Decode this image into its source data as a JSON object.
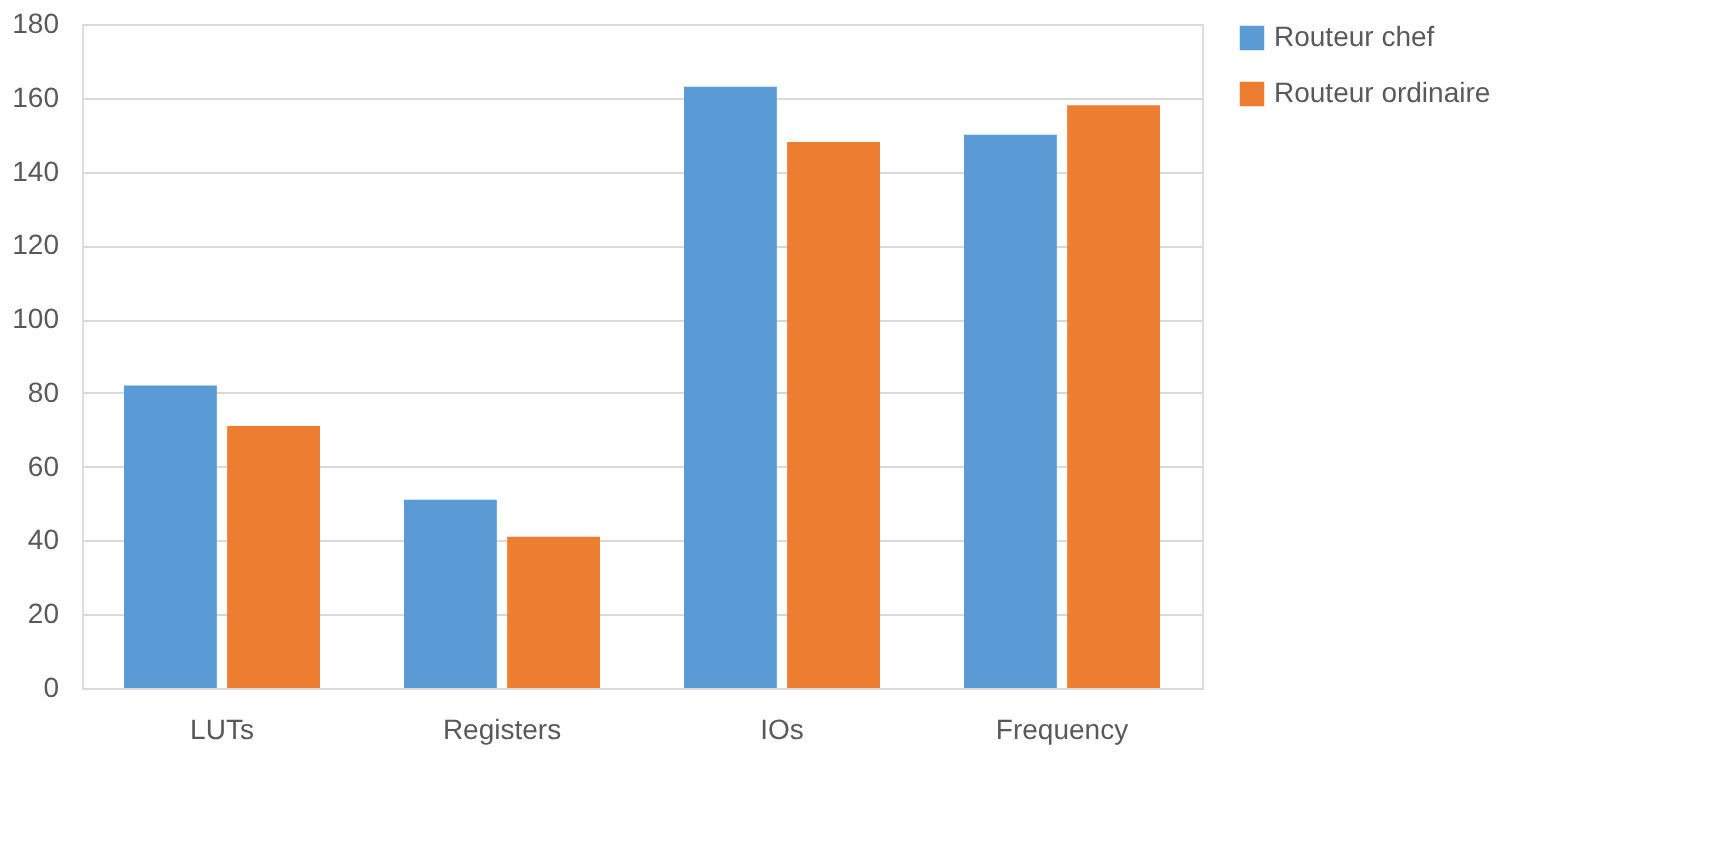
{
  "chart_data": {
    "type": "bar",
    "categories": [
      "LUTs",
      "Registers",
      "IOs",
      "Frequency"
    ],
    "series": [
      {
        "name": "Routeur chef",
        "color": "#5b9bd5",
        "values": [
          82,
          51,
          163,
          150
        ]
      },
      {
        "name": "Routeur ordinaire",
        "color": "#ed7d31",
        "values": [
          71,
          41,
          148,
          158
        ]
      }
    ],
    "ylim": [
      0,
      180
    ],
    "yticks": [
      0,
      20,
      40,
      60,
      80,
      100,
      120,
      140,
      160,
      180
    ],
    "grid": "y",
    "legend": "right"
  }
}
